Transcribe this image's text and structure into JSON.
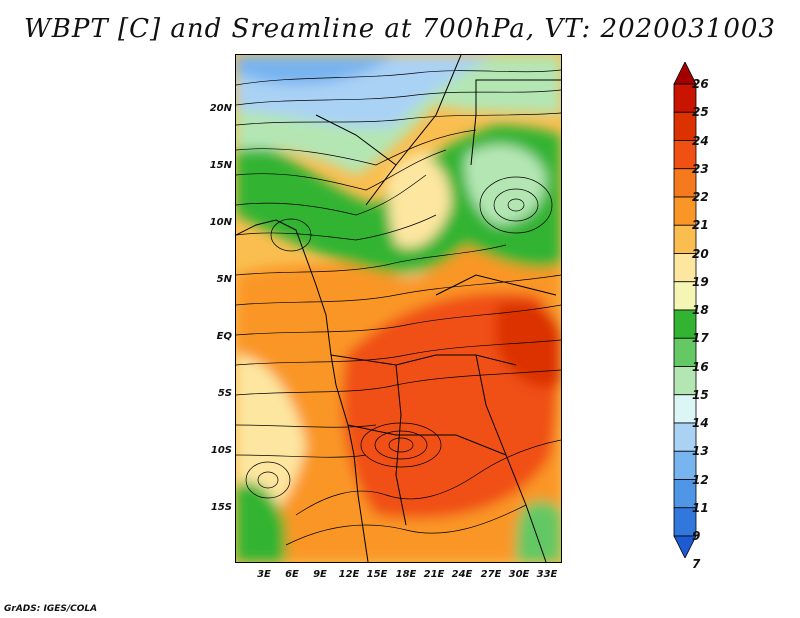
{
  "title": "WBPT [C] and Sreamline at 700hPa, VT: 2020031003",
  "credit": "GrADS: IGES/COLA",
  "map": {
    "variable": "Wet-bulb potential temperature",
    "units": "C",
    "level": "700hPa",
    "valid_time": "2020031003",
    "lat_ticks": [
      "20N",
      "15N",
      "10N",
      "5N",
      "EQ",
      "5S",
      "10S",
      "15S"
    ],
    "lon_ticks": [
      "3E",
      "6E",
      "9E",
      "12E",
      "15E",
      "18E",
      "21E",
      "24E",
      "27E",
      "30E",
      "33E"
    ],
    "lon_range": [
      0.5,
      35
    ],
    "lat_range": [
      -20,
      25
    ]
  },
  "colorbar": {
    "labels": [
      "26",
      "25",
      "24",
      "23",
      "22",
      "21",
      "20",
      "19",
      "18",
      "17",
      "16",
      "15",
      "14",
      "13",
      "12",
      "11",
      "9",
      "7"
    ],
    "colors": [
      "#a50000",
      "#c81400",
      "#dc3200",
      "#f05014",
      "#f57a1e",
      "#fa9628",
      "#fabe50",
      "#fde6a0",
      "#f5f5b4",
      "#32b432",
      "#64c864",
      "#b4e6b4",
      "#dcf5f5",
      "#aad2f5",
      "#78b4f0",
      "#5096e6",
      "#3278dc",
      "#1e5ad2"
    ]
  },
  "regions": {
    "cool_north_label": "WBPT 12–15 C over the Sahara (north)",
    "warm_core_label": "WBPT 23–25 C over central Africa"
  }
}
